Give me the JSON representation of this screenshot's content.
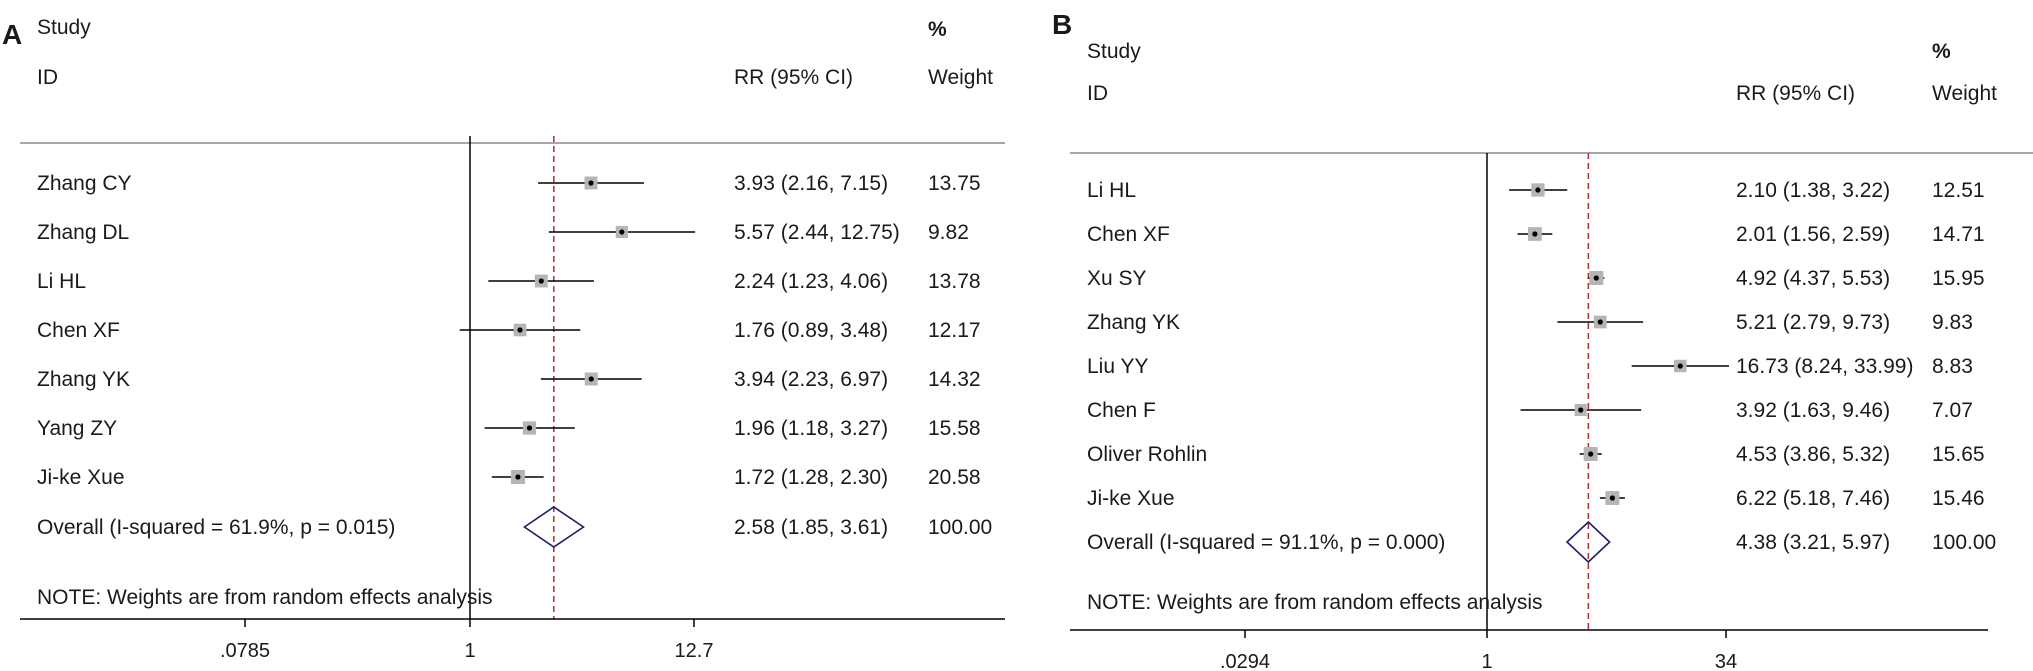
{
  "chart_data": [
    {
      "type": "forest",
      "panel_label": "A",
      "columns": {
        "study": "Study",
        "id": "ID",
        "effect": "RR (95% CI)",
        "weight_pct": "%",
        "weight": "Weight"
      },
      "x_scale": "log",
      "x_ticks": [
        ".0785",
        "1",
        "12.7"
      ],
      "x_tick_values": [
        0.0785,
        1,
        12.7
      ],
      "x_range": [
        0.0785,
        78
      ],
      "studies": [
        {
          "name": "Zhang CY",
          "rr": 3.93,
          "lower": 2.16,
          "upper": 7.15,
          "ci_text": "3.93 (2.16, 7.15)",
          "weight": "13.75"
        },
        {
          "name": "Zhang DL",
          "rr": 5.57,
          "lower": 2.44,
          "upper": 12.75,
          "ci_text": "5.57 (2.44, 12.75)",
          "weight": "9.82"
        },
        {
          "name": "Li HL",
          "rr": 2.24,
          "lower": 1.23,
          "upper": 4.06,
          "ci_text": "2.24 (1.23, 4.06)",
          "weight": "13.78"
        },
        {
          "name": "Chen XF",
          "rr": 1.76,
          "lower": 0.89,
          "upper": 3.48,
          "ci_text": "1.76 (0.89, 3.48)",
          "weight": "12.17"
        },
        {
          "name": "Zhang YK",
          "rr": 3.94,
          "lower": 2.23,
          "upper": 6.97,
          "ci_text": "3.94 (2.23, 6.97)",
          "weight": "14.32"
        },
        {
          "name": "Yang ZY",
          "rr": 1.96,
          "lower": 1.18,
          "upper": 3.27,
          "ci_text": "1.96 (1.18, 3.27)",
          "weight": "15.58"
        },
        {
          "name": "Ji-ke Xue",
          "rr": 1.72,
          "lower": 1.28,
          "upper": 2.3,
          "ci_text": "1.72 (1.28, 2.30)",
          "weight": "20.58"
        }
      ],
      "overall": {
        "label": "Overall  (I-squared = 61.9%, p = 0.015)",
        "rr": 2.58,
        "lower": 1.85,
        "upper": 3.61,
        "ci_text": "2.58 (1.85, 3.61)",
        "weight": "100.00"
      },
      "note": "NOTE: Weights are from random effects analysis",
      "colors": {
        "line": "#000000",
        "overall_line": "#b03030",
        "diamond": "#1a1f6e",
        "box": "#b5b5b5"
      }
    },
    {
      "type": "forest",
      "panel_label": "B",
      "columns": {
        "study": "Study",
        "id": "ID",
        "effect": "RR (95% CI)",
        "weight_pct": "%",
        "weight": "Weight"
      },
      "x_scale": "log",
      "x_ticks": [
        ".0294",
        "1",
        "34"
      ],
      "x_tick_values": [
        0.0294,
        1,
        34
      ],
      "x_range": [
        0.0294,
        500
      ],
      "studies": [
        {
          "name": "Li HL",
          "rr": 2.1,
          "lower": 1.38,
          "upper": 3.22,
          "ci_text": "2.10 (1.38, 3.22)",
          "weight": "12.51"
        },
        {
          "name": "Chen XF",
          "rr": 2.01,
          "lower": 1.56,
          "upper": 2.59,
          "ci_text": "2.01 (1.56, 2.59)",
          "weight": "14.71"
        },
        {
          "name": "Xu SY",
          "rr": 4.92,
          "lower": 4.37,
          "upper": 5.53,
          "ci_text": "4.92 (4.37, 5.53)",
          "weight": "15.95"
        },
        {
          "name": "Zhang YK",
          "rr": 5.21,
          "lower": 2.79,
          "upper": 9.73,
          "ci_text": "5.21 (2.79, 9.73)",
          "weight": "9.83"
        },
        {
          "name": "Liu YY",
          "rr": 16.73,
          "lower": 8.24,
          "upper": 33.99,
          "ci_text": "16.73 (8.24, 33.99)",
          "weight": "8.83"
        },
        {
          "name": "Chen F",
          "rr": 3.92,
          "lower": 1.63,
          "upper": 9.46,
          "ci_text": "3.92 (1.63, 9.46)",
          "weight": "7.07"
        },
        {
          "name": "Oliver Rohlin",
          "rr": 4.53,
          "lower": 3.86,
          "upper": 5.32,
          "ci_text": "4.53 (3.86, 5.32)",
          "weight": "15.65"
        },
        {
          "name": "Ji-ke Xue",
          "rr": 6.22,
          "lower": 5.18,
          "upper": 7.46,
          "ci_text": "6.22 (5.18, 7.46)",
          "weight": "15.46"
        }
      ],
      "overall": {
        "label": "Overall  (I-squared = 91.1%, p = 0.000)",
        "rr": 4.38,
        "lower": 3.21,
        "upper": 5.97,
        "ci_text": "4.38 (3.21, 5.97)",
        "weight": "100.00"
      },
      "note": "NOTE: Weights are from random effects analysis",
      "colors": {
        "line": "#000000",
        "overall_line": "#b03030",
        "diamond": "#1a1f6e",
        "box": "#b5b5b5"
      }
    }
  ]
}
